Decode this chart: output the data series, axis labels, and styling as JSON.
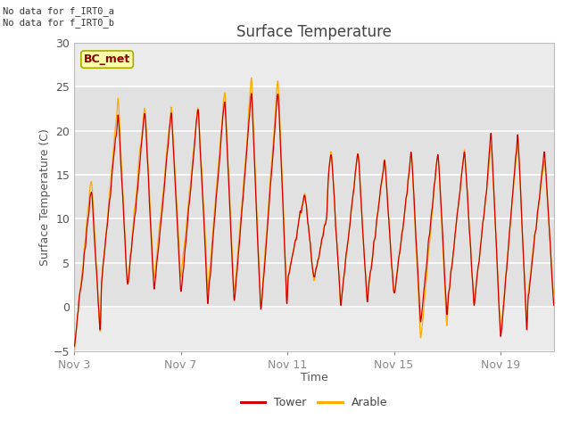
{
  "title": "Surface Temperature",
  "xlabel": "Time",
  "ylabel": "Surface Temperature (C)",
  "ylim": [
    -5,
    30
  ],
  "yticks": [
    -5,
    0,
    5,
    10,
    15,
    20,
    25,
    30
  ],
  "tower_color": "#cc0000",
  "arable_color": "#ffaa00",
  "annotation_text": "No data for f_IRT0_a\nNo data for f_IRT0_b",
  "legend_label_tower": "Tower",
  "legend_label_arable": "Arable",
  "watermark_text": "BC_met",
  "xtick_labels": [
    "Nov 3",
    "Nov 7",
    "Nov 11",
    "Nov 15",
    "Nov 19"
  ],
  "xtick_positions": [
    0,
    4,
    8,
    12,
    16
  ],
  "fig_bg": "#ffffff",
  "axes_bg": "#ebebeb",
  "grid_color": "#ffffff"
}
